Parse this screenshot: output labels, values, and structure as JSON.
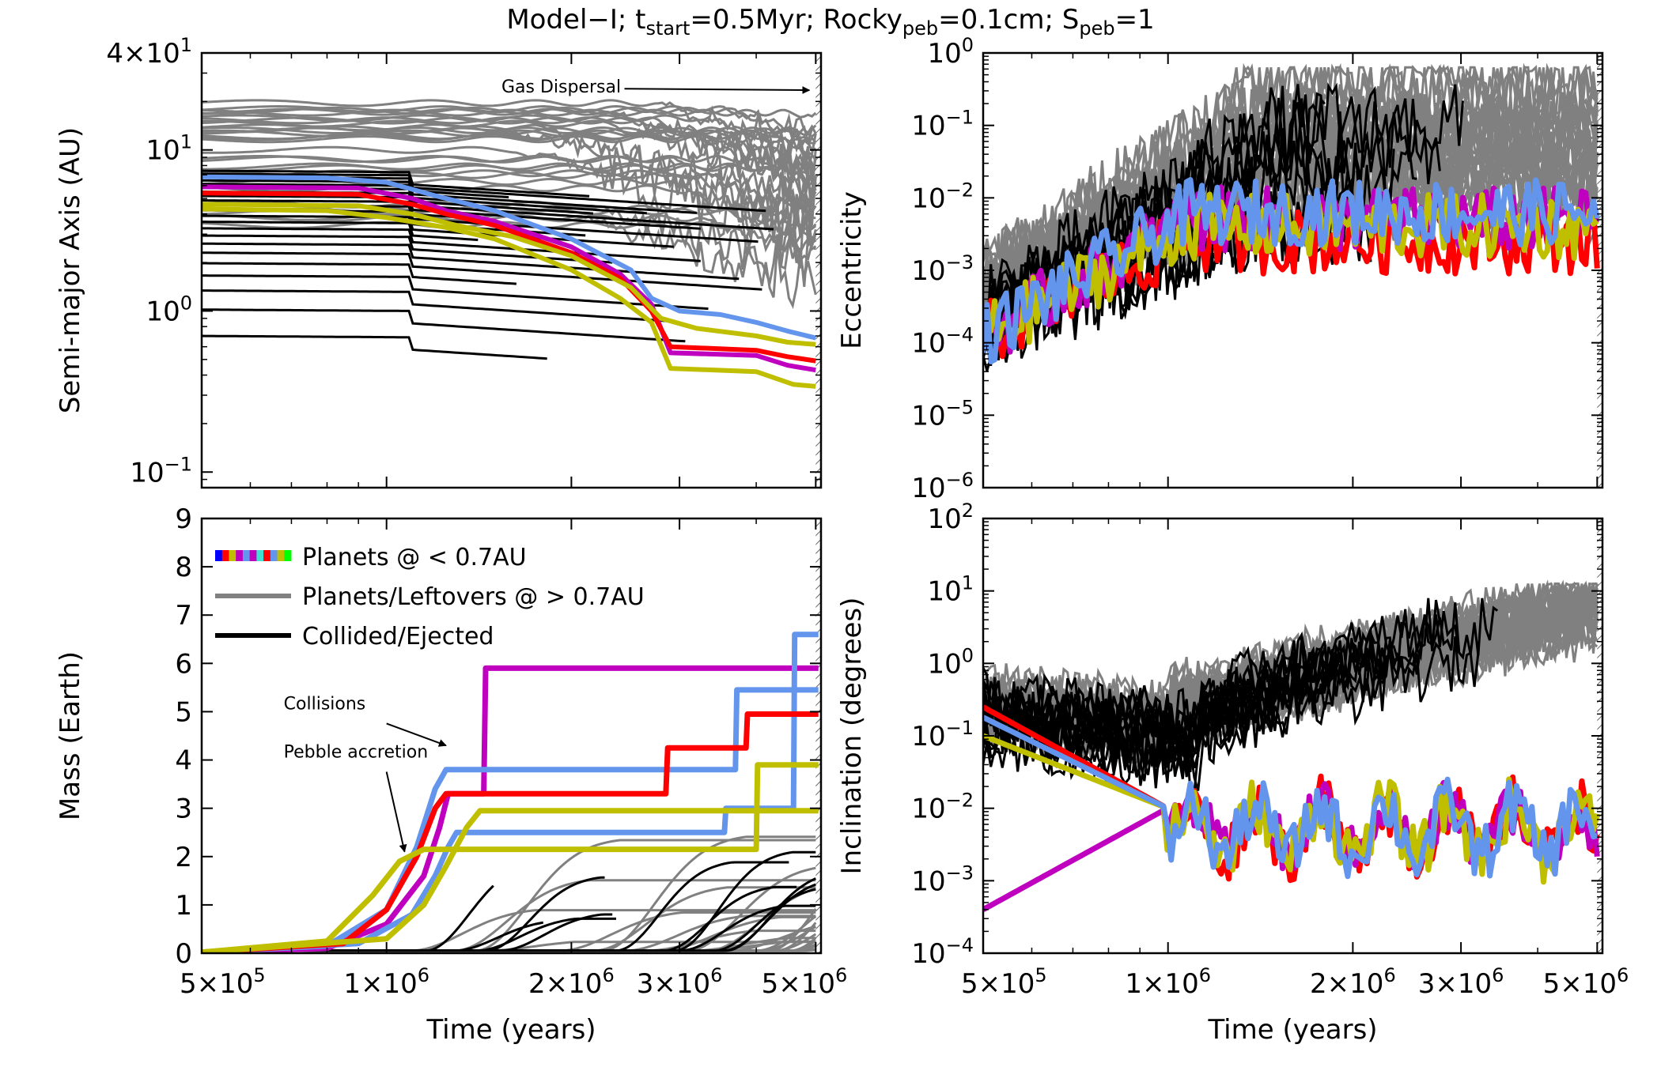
{
  "title": "Model−I; t_start=0.5Myr; Rocky_peb=0.1cm; S_peb=1",
  "title_parts": {
    "prefix": "Model−I; t",
    "sub1": "start",
    "mid1": "=0.5Myr; Rocky",
    "sub2": "peb",
    "mid2": "=0.1cm; S",
    "sub3": "peb",
    "suffix": "=1"
  },
  "colors": {
    "red": "#ff0000",
    "magenta": "#bf00bf",
    "blue": "#6495ed",
    "olive": "#bfbf00",
    "gray": "#808080",
    "black": "#000000",
    "legend_strip": [
      "#0000ff",
      "#ff0000",
      "#bfbf00",
      "#bf00bf",
      "#6495ed",
      "#bf00bf",
      "#40e0d0",
      "#ff0000",
      "#6495ed",
      "#bfbf00",
      "#00ff00"
    ]
  },
  "chart_data": [
    {
      "id": "semimajor",
      "type": "line",
      "xscale": "log",
      "yscale": "log",
      "xlim": [
        500000,
        5100000
      ],
      "ylim": [
        0.08,
        40
      ],
      "ylabel": "Semi-major Axis (AU)",
      "xlabel": "",
      "yticks": [
        {
          "value": 40,
          "mant": "4",
          "exp": "1"
        },
        {
          "value": 10,
          "mant": "",
          "exp": "1"
        },
        {
          "value": 1,
          "mant": "",
          "exp": "0"
        },
        {
          "value": 0.1,
          "mant": "",
          "exp": "−1"
        }
      ],
      "annotations": [
        {
          "text": "Gas Dispersal",
          "x_start": 2300000,
          "y_start": 24,
          "x_end": 5000000,
          "y_end": 23.5
        }
      ],
      "gas_dispersal": 5000000,
      "series": [
        {
          "name": "blue",
          "color": "#6495ed",
          "width": 6,
          "points": [
            [
              500000,
              6.8
            ],
            [
              800000,
              6.7
            ],
            [
              1000000,
              6.3
            ],
            [
              1200000,
              5.2
            ],
            [
              1500000,
              4.2
            ],
            [
              2000000,
              2.8
            ],
            [
              2500000,
              1.8
            ],
            [
              2700000,
              1.2
            ],
            [
              3000000,
              1.0
            ],
            [
              3500000,
              0.95
            ],
            [
              4000000,
              0.85
            ],
            [
              4500000,
              0.75
            ],
            [
              5000000,
              0.68
            ]
          ]
        },
        {
          "name": "magenta",
          "color": "#bf00bf",
          "width": 6,
          "points": [
            [
              500000,
              5.9
            ],
            [
              900000,
              5.8
            ],
            [
              1100000,
              5.0
            ],
            [
              1250000,
              4.2
            ],
            [
              1500000,
              3.6
            ],
            [
              2000000,
              2.5
            ],
            [
              2400000,
              1.7
            ],
            [
              2700000,
              1.1
            ],
            [
              2900000,
              0.55
            ],
            [
              4000000,
              0.53
            ],
            [
              4500000,
              0.46
            ],
            [
              5000000,
              0.43
            ]
          ]
        },
        {
          "name": "red",
          "color": "#ff0000",
          "width": 6,
          "points": [
            [
              500000,
              5.4
            ],
            [
              900000,
              5.3
            ],
            [
              1100000,
              4.6
            ],
            [
              1250000,
              4.0
            ],
            [
              1500000,
              3.4
            ],
            [
              2000000,
              2.3
            ],
            [
              2400000,
              1.6
            ],
            [
              2700000,
              1.0
            ],
            [
              2900000,
              0.6
            ],
            [
              4000000,
              0.57
            ],
            [
              4500000,
              0.52
            ],
            [
              5000000,
              0.49
            ]
          ]
        },
        {
          "name": "olive",
          "color": "#bfbf00",
          "width": 6,
          "points": [
            [
              500000,
              4.3
            ],
            [
              800000,
              4.2
            ],
            [
              1000000,
              3.8
            ],
            [
              1250000,
              3.3
            ],
            [
              1500000,
              2.8
            ],
            [
              2000000,
              1.8
            ],
            [
              2400000,
              1.2
            ],
            [
              2700000,
              0.85
            ],
            [
              2900000,
              0.44
            ],
            [
              4000000,
              0.42
            ],
            [
              4600000,
              0.35
            ],
            [
              5000000,
              0.34
            ]
          ]
        },
        {
          "name": "olive2",
          "color": "#bfbf00",
          "width": 6,
          "points": [
            [
              500000,
              4.6
            ],
            [
              900000,
              4.5
            ],
            [
              1100000,
              4.0
            ],
            [
              1300000,
              3.4
            ],
            [
              1600000,
              2.9
            ],
            [
              2000000,
              2.2
            ],
            [
              2500000,
              1.4
            ],
            [
              2800000,
              0.9
            ],
            [
              3200000,
              0.78
            ],
            [
              4000000,
              0.7
            ],
            [
              4500000,
              0.64
            ],
            [
              5000000,
              0.62
            ]
          ]
        }
      ],
      "background_count_gray": 32,
      "background_count_black": 22
    },
    {
      "id": "eccentricity",
      "type": "line",
      "xscale": "log",
      "yscale": "log",
      "xlim": [
        500000,
        5100000
      ],
      "ylim": [
        1e-06,
        1
      ],
      "ylabel": "Eccentricity",
      "xlabel": "",
      "yticks": [
        {
          "value": 1,
          "mant": "",
          "exp": "0"
        },
        {
          "value": 0.1,
          "mant": "",
          "exp": "−1"
        },
        {
          "value": 0.01,
          "mant": "",
          "exp": "−2"
        },
        {
          "value": 0.001,
          "mant": "",
          "exp": "−3"
        },
        {
          "value": 0.0001,
          "mant": "",
          "exp": "−4"
        },
        {
          "value": 1e-05,
          "mant": "",
          "exp": "−5"
        },
        {
          "value": 1e-06,
          "mant": "",
          "exp": "−6"
        }
      ],
      "series": [
        {
          "name": "red",
          "color": "#ff0000",
          "level": -2.6
        },
        {
          "name": "magenta",
          "color": "#bf00bf",
          "level": -2.3
        },
        {
          "name": "olive",
          "color": "#bfbf00",
          "level": -2.4
        },
        {
          "name": "blue",
          "color": "#6495ed",
          "level": -2.2
        }
      ],
      "background_count_gray": 28,
      "background_count_black": 12
    },
    {
      "id": "mass",
      "type": "line",
      "xscale": "log",
      "yscale": "linear",
      "xlim": [
        500000,
        5100000
      ],
      "ylim": [
        0,
        9
      ],
      "ylabel": "Mass (Earth)",
      "xlabel": "Time (years)",
      "yticks": [
        {
          "value": 0,
          "label": "0"
        },
        {
          "value": 1,
          "label": "1"
        },
        {
          "value": 2,
          "label": "2"
        },
        {
          "value": 3,
          "label": "3"
        },
        {
          "value": 4,
          "label": "4"
        },
        {
          "value": 5,
          "label": "5"
        },
        {
          "value": 6,
          "label": "6"
        },
        {
          "value": 7,
          "label": "7"
        },
        {
          "value": 8,
          "label": "8"
        },
        {
          "value": 9,
          "label": "9"
        }
      ],
      "xticks": [
        {
          "value": 500000,
          "mant": "5",
          "exp": "5"
        },
        {
          "value": 1000000,
          "mant": "1",
          "exp": "6"
        },
        {
          "value": 2000000,
          "mant": "2",
          "exp": "6"
        },
        {
          "value": 3000000,
          "mant": "3",
          "exp": "6"
        },
        {
          "value": 5000000,
          "mant": "5",
          "exp": "6"
        }
      ],
      "legend": [
        {
          "label": "Planets @ < 0.7AU",
          "kind": "strip"
        },
        {
          "label": "Planets/Leftovers @ > 0.7AU",
          "kind": "gray"
        },
        {
          "label": "Collided/Ejected",
          "kind": "black"
        }
      ],
      "annotations": [
        {
          "text": "Collisions",
          "x_text": 680000,
          "y_text": 5.05,
          "x_end": 1250000,
          "y_end": 4.3
        },
        {
          "text": "Pebble accretion",
          "x_text": 680000,
          "y_text": 4.05,
          "x_end": 1070000,
          "y_end": 2.1
        }
      ],
      "series": [
        {
          "name": "magenta",
          "color": "#bf00bf",
          "width": 7,
          "points": [
            [
              500000,
              0.02
            ],
            [
              800000,
              0.1
            ],
            [
              1000000,
              0.6
            ],
            [
              1150000,
              1.6
            ],
            [
              1220000,
              2.6
            ],
            [
              1260000,
              3.3
            ],
            [
              1440000,
              3.3
            ],
            [
              1450000,
              5.9
            ],
            [
              5050000,
              5.9
            ]
          ]
        },
        {
          "name": "blue",
          "color": "#6495ed",
          "width": 7,
          "points": [
            [
              500000,
              0.02
            ],
            [
              800000,
              0.15
            ],
            [
              1000000,
              0.9
            ],
            [
              1120000,
              2.2
            ],
            [
              1200000,
              3.4
            ],
            [
              1250000,
              3.8
            ],
            [
              3700000,
              3.8
            ],
            [
              3720000,
              5.45
            ],
            [
              5050000,
              5.45
            ]
          ]
        },
        {
          "name": "blue2",
          "color": "#6495ed",
          "width": 7,
          "points": [
            [
              500000,
              0.02
            ],
            [
              900000,
              0.2
            ],
            [
              1100000,
              0.8
            ],
            [
              1200000,
              1.6
            ],
            [
              1260000,
              2.2
            ],
            [
              1300000,
              2.5
            ],
            [
              3550000,
              2.5
            ],
            [
              3570000,
              3.0
            ],
            [
              4600000,
              3.0
            ],
            [
              4620000,
              6.6
            ],
            [
              5050000,
              6.6
            ]
          ]
        },
        {
          "name": "red",
          "color": "#ff0000",
          "width": 7,
          "points": [
            [
              500000,
              0.02
            ],
            [
              850000,
              0.2
            ],
            [
              1000000,
              0.9
            ],
            [
              1120000,
              2.0
            ],
            [
              1200000,
              3.0
            ],
            [
              1250000,
              3.3
            ],
            [
              2850000,
              3.3
            ],
            [
              2870000,
              4.25
            ],
            [
              3850000,
              4.25
            ],
            [
              3870000,
              4.95
            ],
            [
              5050000,
              4.95
            ]
          ]
        },
        {
          "name": "olive",
          "color": "#bfbf00",
          "width": 7,
          "points": [
            [
              500000,
              0.02
            ],
            [
              800000,
              0.25
            ],
            [
              950000,
              1.2
            ],
            [
              1050000,
              1.9
            ],
            [
              1150000,
              2.15
            ],
            [
              4000000,
              2.15
            ],
            [
              4020000,
              3.9
            ],
            [
              5050000,
              3.9
            ]
          ]
        },
        {
          "name": "olive2",
          "color": "#bfbf00",
          "width": 7,
          "points": [
            [
              500000,
              0.02
            ],
            [
              1000000,
              0.3
            ],
            [
              1150000,
              1.0
            ],
            [
              1250000,
              1.8
            ],
            [
              1350000,
              2.6
            ],
            [
              1420000,
              2.95
            ],
            [
              5050000,
              2.95
            ]
          ]
        }
      ],
      "background_count_gray": 26,
      "background_count_black": 12
    },
    {
      "id": "inclination",
      "type": "line",
      "xscale": "log",
      "yscale": "log",
      "xlim": [
        500000,
        5100000
      ],
      "ylim": [
        0.0001,
        100
      ],
      "ylabel": "Inclination (degrees)",
      "xlabel": "Time (years)",
      "yticks": [
        {
          "value": 100,
          "mant": "",
          "exp": "2"
        },
        {
          "value": 10,
          "mant": "",
          "exp": "1"
        },
        {
          "value": 1,
          "mant": "",
          "exp": "0"
        },
        {
          "value": 0.1,
          "mant": "",
          "exp": "−1"
        },
        {
          "value": 0.01,
          "mant": "",
          "exp": "−2"
        },
        {
          "value": 0.001,
          "mant": "",
          "exp": "−3"
        },
        {
          "value": 0.0001,
          "mant": "",
          "exp": "−4"
        }
      ],
      "xticks": [
        {
          "value": 500000,
          "mant": "5",
          "exp": "5"
        },
        {
          "value": 1000000,
          "mant": "1",
          "exp": "6"
        },
        {
          "value": 2000000,
          "mant": "2",
          "exp": "6"
        },
        {
          "value": 3000000,
          "mant": "3",
          "exp": "6"
        },
        {
          "value": 5000000,
          "mant": "5",
          "exp": "6"
        }
      ],
      "series": [
        {
          "name": "red",
          "color": "#ff0000",
          "start": 0.25
        },
        {
          "name": "magenta",
          "color": "#bf00bf",
          "start": 0.0004
        },
        {
          "name": "olive",
          "color": "#bfbf00",
          "start": 0.1
        },
        {
          "name": "blue",
          "color": "#6495ed",
          "start": 0.18
        }
      ],
      "background_count_gray": 30,
      "background_count_black": 14
    }
  ]
}
